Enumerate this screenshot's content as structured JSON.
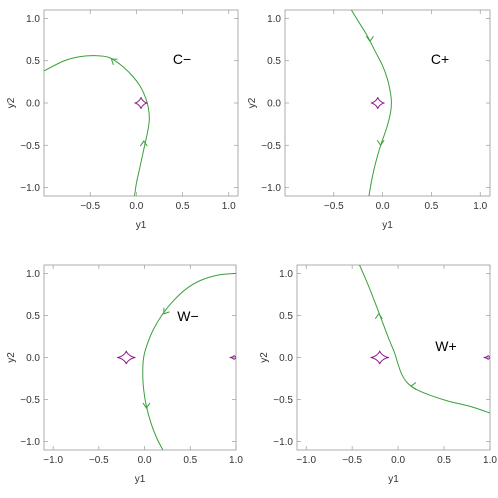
{
  "chart_data": [
    {
      "type": "line",
      "title": "C−",
      "xlabel": "y1",
      "ylabel": "y2",
      "xlim": [
        -1,
        1.1
      ],
      "ylim": [
        -1.1,
        1.1
      ],
      "xticks": [
        -0.5,
        0.0,
        0.5,
        1.0
      ],
      "xtick_labels": [
        "−0.5",
        "0.0",
        "0.5",
        "1.0"
      ],
      "yticks": [
        -1.0,
        -0.5,
        0.0,
        0.5,
        1.0
      ],
      "ytick_labels": [
        "−1.0",
        "−0.5",
        "0.0",
        "0.5",
        "1.0"
      ],
      "series": [
        {
          "kind": "trajectory",
          "color": "#3a9f3a",
          "x": [
            -1.0,
            -0.78,
            -0.6,
            -0.45,
            -0.3,
            -0.18,
            -0.06,
            0.04,
            0.1,
            0.13,
            0.14,
            0.12,
            0.09,
            0.06,
            0.03,
            0.0,
            -0.02
          ],
          "y": [
            0.38,
            0.5,
            0.55,
            0.56,
            0.54,
            0.46,
            0.34,
            0.2,
            0.06,
            -0.06,
            -0.2,
            -0.35,
            -0.5,
            -0.65,
            -0.8,
            -0.95,
            -1.1
          ],
          "arrows": [
            {
              "x": -0.27,
              "y": 0.52,
              "dir": "up-left"
            },
            {
              "x": 0.08,
              "y": -0.45,
              "dir": "up"
            }
          ]
        },
        {
          "kind": "caustic",
          "color": "#8a1a8a",
          "cx": 0.05,
          "cy": 0.0,
          "rx": 0.07,
          "ry": 0.07
        }
      ]
    },
    {
      "type": "line",
      "title": "C+",
      "xlabel": "y1",
      "ylabel": "y2",
      "xlim": [
        -1,
        1.1
      ],
      "ylim": [
        -1.1,
        1.1
      ],
      "xticks": [
        -0.5,
        0.0,
        0.5,
        1.0
      ],
      "xtick_labels": [
        "−0.5",
        "0.0",
        "0.5",
        "1.0"
      ],
      "yticks": [
        -1.0,
        -0.5,
        0.0,
        0.5,
        1.0
      ],
      "ytick_labels": [
        "−1.0",
        "−0.5",
        "0.0",
        "0.5",
        "1.0"
      ],
      "series": [
        {
          "kind": "trajectory",
          "color": "#3a9f3a",
          "x": [
            -0.32,
            -0.24,
            -0.16,
            -0.08,
            0.0,
            0.05,
            0.08,
            0.09,
            0.08,
            0.04,
            -0.02,
            -0.07,
            -0.11,
            -0.14
          ],
          "y": [
            1.1,
            0.95,
            0.8,
            0.62,
            0.44,
            0.28,
            0.12,
            0.0,
            -0.12,
            -0.3,
            -0.5,
            -0.7,
            -0.9,
            -1.1
          ],
          "arrows": [
            {
              "x": -0.13,
              "y": 0.73,
              "dir": "down"
            },
            {
              "x": -0.02,
              "y": -0.5,
              "dir": "down"
            }
          ]
        },
        {
          "kind": "caustic",
          "color": "#8a1a8a",
          "cx": -0.05,
          "cy": 0.0,
          "rx": 0.07,
          "ry": 0.07
        }
      ]
    },
    {
      "type": "line",
      "title": "W−",
      "xlabel": "y1",
      "ylabel": "y2",
      "xlim": [
        -1.1,
        1.0
      ],
      "ylim": [
        -1.1,
        1.1
      ],
      "xticks": [
        -1.0,
        -0.5,
        0.0,
        0.5,
        1.0
      ],
      "xtick_labels": [
        "−1.0",
        "−0.5",
        "0.0",
        "0.5",
        "1.0"
      ],
      "yticks": [
        -1.0,
        -0.5,
        0.0,
        0.5,
        1.0
      ],
      "ytick_labels": [
        "−1.0",
        "−0.5",
        "0.0",
        "0.5",
        "1.0"
      ],
      "series": [
        {
          "kind": "trajectory",
          "color": "#3a9f3a",
          "x": [
            1.0,
            0.8,
            0.62,
            0.46,
            0.32,
            0.2,
            0.1,
            0.03,
            -0.01,
            -0.02,
            -0.01,
            0.02,
            0.07,
            0.13,
            0.2
          ],
          "y": [
            1.0,
            0.98,
            0.92,
            0.82,
            0.68,
            0.52,
            0.34,
            0.16,
            0.0,
            -0.18,
            -0.38,
            -0.58,
            -0.78,
            -0.95,
            -1.1
          ],
          "arrows": [
            {
              "x": 0.21,
              "y": 0.52,
              "dir": "down-left"
            },
            {
              "x": 0.02,
              "y": -0.6,
              "dir": "down"
            }
          ]
        },
        {
          "kind": "caustic",
          "color": "#8a1a8a",
          "cx": -0.2,
          "cy": 0.0,
          "rx": 0.1,
          "ry": 0.08
        },
        {
          "kind": "caustic",
          "color": "#8a1a8a",
          "cx": 0.98,
          "cy": 0.0,
          "rx": 0.05,
          "ry": 0.025
        }
      ]
    },
    {
      "type": "line",
      "title": "W+",
      "xlabel": "y1",
      "ylabel": "y2",
      "xlim": [
        -1.1,
        1.0
      ],
      "ylim": [
        -1.1,
        1.1
      ],
      "xticks": [
        -1.0,
        -0.5,
        0.0,
        0.5,
        1.0
      ],
      "xtick_labels": [
        "−1.0",
        "−0.5",
        "0.0",
        "0.5",
        "1.0"
      ],
      "yticks": [
        -1.0,
        -0.5,
        0.0,
        0.5,
        1.0
      ],
      "ytick_labels": [
        "−1.0",
        "−0.5",
        "0.0",
        "0.5",
        "1.0"
      ],
      "series": [
        {
          "kind": "trajectory",
          "color": "#3a9f3a",
          "x": [
            -0.42,
            -0.34,
            -0.26,
            -0.18,
            -0.1,
            -0.04,
            0.0,
            0.04,
            0.1,
            0.2,
            0.35,
            0.55,
            0.78,
            1.0
          ],
          "y": [
            1.1,
            0.9,
            0.68,
            0.45,
            0.22,
            0.06,
            -0.08,
            -0.2,
            -0.3,
            -0.38,
            -0.45,
            -0.52,
            -0.58,
            -0.66
          ],
          "arrows": [
            {
              "x": -0.21,
              "y": 0.52,
              "dir": "up"
            },
            {
              "x": 0.14,
              "y": -0.34,
              "dir": "left"
            }
          ]
        },
        {
          "kind": "caustic",
          "color": "#8a1a8a",
          "cx": -0.2,
          "cy": 0.0,
          "rx": 0.1,
          "ry": 0.08
        },
        {
          "kind": "caustic",
          "color": "#8a1a8a",
          "cx": 0.98,
          "cy": 0.0,
          "rx": 0.05,
          "ry": 0.025
        }
      ]
    }
  ]
}
